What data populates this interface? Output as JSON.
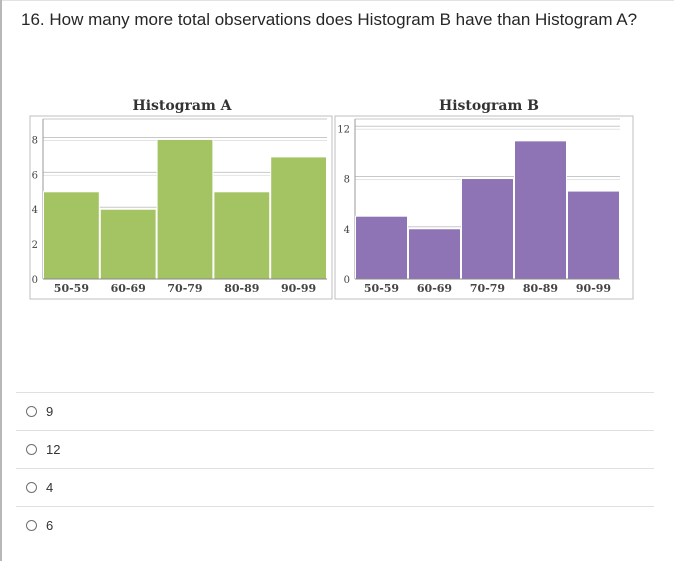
{
  "question": {
    "text": "16. How many more total observations does Histogram B have than Histogram A?"
  },
  "colors": {
    "histogram_a_fill": "#a4c464",
    "histogram_b_fill": "#8e74b4",
    "grid": "#c8c8c8",
    "frame": "#bfbfbf"
  },
  "chart_data": [
    {
      "type": "bar",
      "title": "Histogram A",
      "categories": [
        "50-59",
        "60-69",
        "70-79",
        "80-89",
        "90-99"
      ],
      "values": [
        5,
        4,
        8,
        5,
        7
      ],
      "y_ticks": [
        "0",
        "2",
        "4",
        "6",
        "8"
      ],
      "ylim": [
        0,
        9
      ],
      "grid": true,
      "color": "#a4c464"
    },
    {
      "type": "bar",
      "title": "Histogram B",
      "categories": [
        "50-59",
        "60-69",
        "70-79",
        "80-89",
        "90-99"
      ],
      "values": [
        5,
        4,
        8,
        11,
        7
      ],
      "y_ticks": [
        "0",
        "4",
        "8",
        "12"
      ],
      "ylim": [
        0,
        12.5
      ],
      "grid": true,
      "color": "#8e74b4"
    }
  ],
  "options": [
    {
      "label": "9"
    },
    {
      "label": "12"
    },
    {
      "label": "4"
    },
    {
      "label": "6"
    }
  ]
}
